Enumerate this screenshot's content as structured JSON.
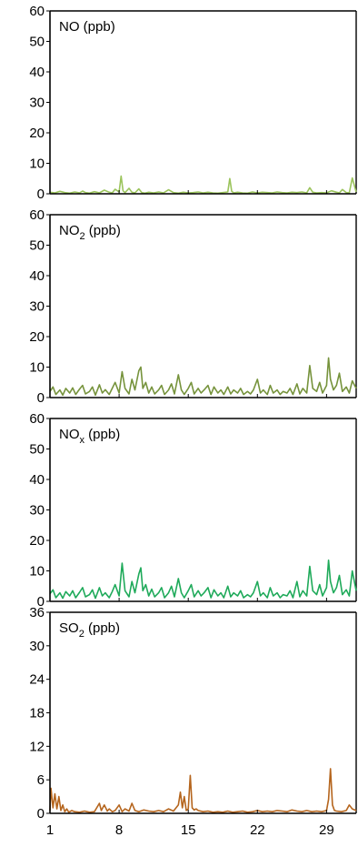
{
  "chart_data": [
    {
      "type": "line",
      "title": "NO (ppb)",
      "title_main": "NO",
      "title_sub": "",
      "title_unit": " (ppb)",
      "ylim": [
        0,
        60
      ],
      "yticks": [
        "0",
        "10",
        "20",
        "30",
        "40",
        "50",
        "60"
      ],
      "xlim": [
        1,
        32
      ],
      "color": "#9bc45c",
      "series": [
        {
          "x": [
            1,
            1.5,
            2,
            2.5,
            3,
            3.5,
            4,
            4.3,
            4.6,
            5,
            5.5,
            6,
            6.5,
            7,
            7.3,
            7.6,
            8,
            8.2,
            8.4,
            8.6,
            9,
            9.3,
            9.6,
            10,
            10.3,
            10.6,
            11,
            11.5,
            12,
            12.5,
            13,
            13.5,
            14,
            14.5,
            15,
            15.5,
            16,
            16.5,
            17,
            17.5,
            18,
            18.5,
            19,
            19.2,
            19.4,
            19.6,
            20,
            20.5,
            21,
            21.5,
            22,
            22.5,
            23,
            23.5,
            24,
            24.5,
            25,
            25.5,
            26,
            26.5,
            27,
            27.3,
            27.6,
            28,
            28.5,
            29,
            29.5,
            30,
            30.3,
            30.6,
            31,
            31.3,
            31.6,
            32
          ],
          "y": [
            0.5,
            0.3,
            0.8,
            0.4,
            0.2,
            0.6,
            0.3,
            0.9,
            0.4,
            0.2,
            0.7,
            0.3,
            1.2,
            0.5,
            0.3,
            1.5,
            0.6,
            5.8,
            1.0,
            0.4,
            1.8,
            0.5,
            0.3,
            1.6,
            0.4,
            0.2,
            0.5,
            0.3,
            0.6,
            0.3,
            1.3,
            0.4,
            0.2,
            0.5,
            0.3,
            0.4,
            0.6,
            0.3,
            0.5,
            0.3,
            0.2,
            0.4,
            0.6,
            5.0,
            0.8,
            0.3,
            0.5,
            0.3,
            0.2,
            0.6,
            0.3,
            0.5,
            0.4,
            0.3,
            0.6,
            0.4,
            0.3,
            0.5,
            0.4,
            0.6,
            0.3,
            2.0,
            0.5,
            0.3,
            0.4,
            0.3,
            1.0,
            0.5,
            0.3,
            1.4,
            0.4,
            0.3,
            5.2,
            0.6
          ]
        }
      ]
    },
    {
      "type": "line",
      "title": "NO2 (ppb)",
      "title_main": "NO",
      "title_sub": "2",
      "title_unit": " (ppb)",
      "ylim": [
        0,
        60
      ],
      "yticks": [
        "0",
        "10",
        "20",
        "30",
        "40",
        "50",
        "60"
      ],
      "xlim": [
        1,
        32
      ],
      "color": "#76933c",
      "series": [
        {
          "x": [
            1,
            1.3,
            1.6,
            2,
            2.3,
            2.6,
            3,
            3.3,
            3.6,
            4,
            4.3,
            4.6,
            5,
            5.3,
            5.6,
            6,
            6.3,
            6.6,
            7,
            7.3,
            7.6,
            8,
            8.3,
            8.6,
            9,
            9.3,
            9.6,
            10,
            10.2,
            10.4,
            10.7,
            11,
            11.3,
            11.6,
            12,
            12.3,
            12.6,
            13,
            13.3,
            13.6,
            14,
            14.3,
            14.6,
            15,
            15.3,
            15.6,
            16,
            16.3,
            16.6,
            17,
            17.3,
            17.6,
            18,
            18.3,
            18.6,
            19,
            19.3,
            19.6,
            20,
            20.3,
            20.6,
            21,
            21.3,
            21.6,
            22,
            22.3,
            22.6,
            23,
            23.3,
            23.6,
            24,
            24.3,
            24.6,
            25,
            25.3,
            25.6,
            26,
            26.3,
            26.6,
            27,
            27.3,
            27.6,
            28,
            28.3,
            28.6,
            29,
            29.2,
            29.4,
            29.7,
            30,
            30.3,
            30.6,
            31,
            31.3,
            31.6,
            32
          ],
          "y": [
            2.0,
            3.5,
            1.0,
            2.5,
            0.8,
            3.0,
            1.5,
            3.2,
            1.0,
            2.8,
            4.0,
            1.2,
            2.0,
            3.5,
            0.8,
            4.2,
            1.5,
            2.6,
            1.0,
            3.0,
            5.0,
            1.5,
            8.5,
            3.0,
            1.2,
            6.0,
            2.5,
            8.8,
            10.0,
            3.0,
            5.0,
            1.5,
            3.5,
            1.2,
            2.5,
            4.0,
            1.0,
            2.5,
            4.5,
            1.2,
            7.5,
            2.5,
            1.0,
            3.0,
            5.0,
            1.2,
            3.0,
            1.5,
            2.5,
            4.0,
            1.0,
            3.5,
            1.5,
            2.5,
            1.0,
            3.5,
            1.2,
            2.5,
            1.5,
            3.0,
            1.0,
            2.0,
            1.2,
            2.5,
            6.0,
            1.5,
            2.5,
            1.0,
            4.0,
            1.5,
            2.5,
            1.0,
            2.0,
            1.5,
            3.0,
            1.0,
            4.5,
            1.2,
            3.0,
            1.5,
            10.5,
            3.0,
            2.0,
            5.0,
            1.5,
            4.0,
            13.0,
            6.0,
            2.5,
            4.0,
            8.0,
            2.0,
            3.5,
            1.5,
            5.5,
            3.0
          ]
        }
      ]
    },
    {
      "type": "line",
      "title": "NOx (ppb)",
      "title_main": "NO",
      "title_sub": "x",
      "title_unit": " (ppb)",
      "ylim": [
        0,
        60
      ],
      "yticks": [
        "0",
        "10",
        "20",
        "30",
        "40",
        "50",
        "60"
      ],
      "xlim": [
        1,
        32
      ],
      "color": "#1faa5a",
      "series": [
        {
          "x": [
            1,
            1.3,
            1.6,
            2,
            2.3,
            2.6,
            3,
            3.3,
            3.6,
            4,
            4.3,
            4.6,
            5,
            5.3,
            5.6,
            6,
            6.3,
            6.6,
            7,
            7.3,
            7.6,
            8,
            8.3,
            8.6,
            9,
            9.3,
            9.6,
            10,
            10.2,
            10.4,
            10.7,
            11,
            11.3,
            11.6,
            12,
            12.3,
            12.6,
            13,
            13.3,
            13.6,
            14,
            14.3,
            14.6,
            15,
            15.3,
            15.6,
            16,
            16.3,
            16.6,
            17,
            17.3,
            17.6,
            18,
            18.3,
            18.6,
            19,
            19.3,
            19.6,
            20,
            20.3,
            20.6,
            21,
            21.3,
            21.6,
            22,
            22.3,
            22.6,
            23,
            23.3,
            23.6,
            24,
            24.3,
            24.6,
            25,
            25.3,
            25.6,
            26,
            26.3,
            26.6,
            27,
            27.3,
            27.6,
            28,
            28.3,
            28.6,
            29,
            29.2,
            29.4,
            29.7,
            30,
            30.3,
            30.6,
            31,
            31.3,
            31.6,
            32
          ],
          "y": [
            2.5,
            3.8,
            1.2,
            2.8,
            1.0,
            3.2,
            1.8,
            3.5,
            1.2,
            3.0,
            4.5,
            1.5,
            2.2,
            3.8,
            1.0,
            4.5,
            1.8,
            2.8,
            1.2,
            3.2,
            5.5,
            1.8,
            12.5,
            3.5,
            1.5,
            6.5,
            2.8,
            9.0,
            11.0,
            3.5,
            5.5,
            1.8,
            4.0,
            1.5,
            2.8,
            4.5,
            1.2,
            2.8,
            5.0,
            1.5,
            7.5,
            2.8,
            1.2,
            3.5,
            5.5,
            1.5,
            3.5,
            1.8,
            2.8,
            4.5,
            1.2,
            3.8,
            1.8,
            2.8,
            1.2,
            5.0,
            1.5,
            2.8,
            1.8,
            3.5,
            1.2,
            2.2,
            1.5,
            2.8,
            6.5,
            1.8,
            2.8,
            1.2,
            4.5,
            1.8,
            2.8,
            1.2,
            2.2,
            1.8,
            3.5,
            1.2,
            6.5,
            1.5,
            3.5,
            1.8,
            11.5,
            3.5,
            2.2,
            5.5,
            1.8,
            4.5,
            13.5,
            6.5,
            2.8,
            4.5,
            8.5,
            2.2,
            3.8,
            1.8,
            10.0,
            3.5
          ]
        }
      ]
    },
    {
      "type": "line",
      "title": "SO2 (ppb)",
      "title_main": "SO",
      "title_sub": "2",
      "title_unit": " (ppb)",
      "ylim": [
        0,
        36
      ],
      "yticks": [
        "0",
        "6",
        "12",
        "18",
        "24",
        "30",
        "36"
      ],
      "xlim": [
        1,
        32
      ],
      "xticks": [
        1,
        8,
        15,
        22,
        29
      ],
      "xtick_labels": [
        "1",
        "8",
        "15",
        "22",
        "29"
      ],
      "color": "#b5651d",
      "series": [
        {
          "x": [
            1,
            1.1,
            1.3,
            1.5,
            1.7,
            1.9,
            2.1,
            2.3,
            2.5,
            2.7,
            2.9,
            3.2,
            3.5,
            4,
            4.5,
            5,
            5.5,
            6,
            6.2,
            6.5,
            6.8,
            7,
            7.3,
            7.6,
            8,
            8.3,
            8.6,
            9,
            9.3,
            9.6,
            10,
            10.5,
            11,
            11.5,
            12,
            12.5,
            13,
            13.5,
            14,
            14.2,
            14.4,
            14.6,
            14.8,
            15,
            15.2,
            15.4,
            15.6,
            15.8,
            16,
            16.5,
            17,
            17.5,
            18,
            18.5,
            19,
            19.5,
            20,
            20.5,
            21,
            21.5,
            22,
            22.5,
            23,
            23.5,
            24,
            24.5,
            25,
            25.5,
            26,
            26.5,
            27,
            27.5,
            28,
            28.5,
            29,
            29.2,
            29.4,
            29.6,
            29.8,
            30,
            30.5,
            31,
            31.3,
            31.6,
            32
          ],
          "y": [
            0.5,
            4.5,
            1.0,
            3.5,
            0.8,
            3.0,
            0.5,
            1.5,
            0.3,
            0.8,
            0.2,
            0.5,
            0.3,
            0.2,
            0.4,
            0.2,
            0.3,
            1.8,
            0.5,
            1.5,
            0.4,
            0.8,
            0.3,
            0.5,
            1.5,
            0.3,
            0.8,
            0.4,
            1.8,
            0.5,
            0.3,
            0.6,
            0.4,
            0.3,
            0.5,
            0.3,
            0.8,
            0.4,
            1.5,
            3.8,
            1.0,
            3.0,
            0.5,
            0.8,
            6.8,
            1.0,
            0.6,
            0.8,
            0.5,
            0.3,
            0.4,
            0.2,
            0.3,
            0.2,
            0.4,
            0.2,
            0.3,
            0.4,
            0.2,
            0.3,
            0.5,
            0.3,
            0.4,
            0.3,
            0.5,
            0.4,
            0.3,
            0.6,
            0.4,
            0.3,
            0.5,
            0.3,
            0.4,
            0.3,
            0.5,
            2.5,
            8.0,
            1.5,
            0.5,
            0.4,
            0.3,
            0.5,
            1.5,
            0.8,
            0.5
          ]
        }
      ]
    }
  ]
}
